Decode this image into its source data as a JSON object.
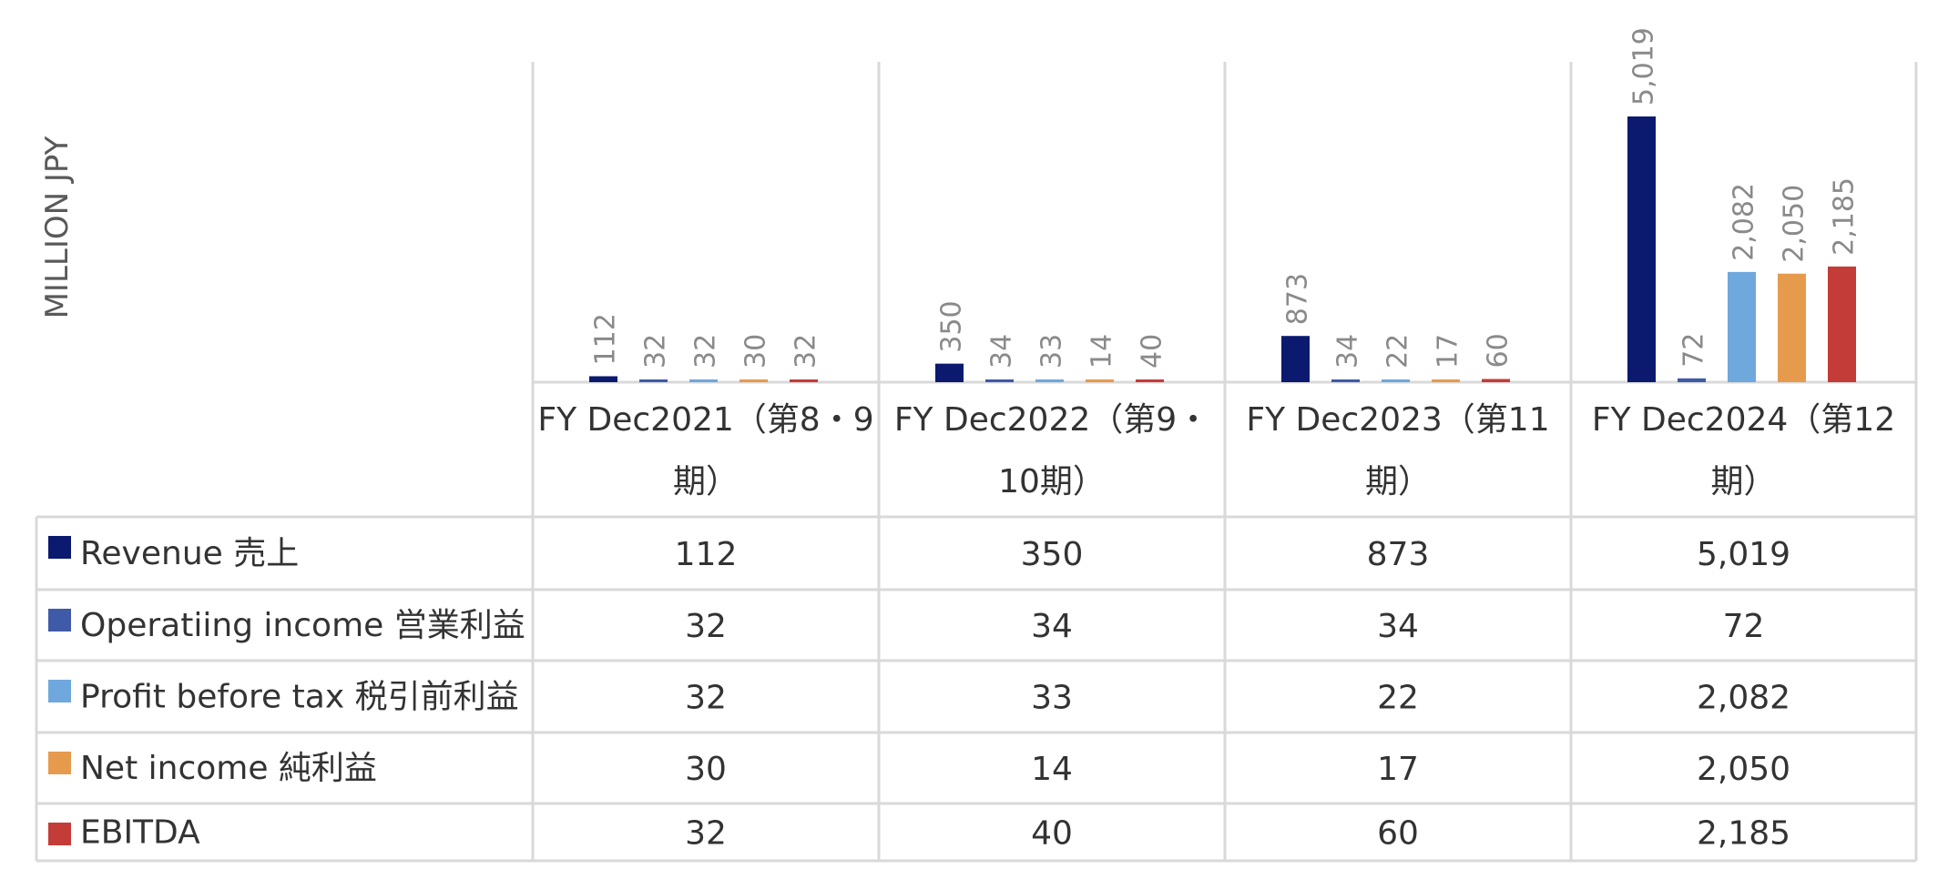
{
  "chart_data": {
    "type": "bar",
    "ylabel": "MILLION JPY",
    "categories": [
      [
        "FY Dec2021（第8・9",
        "期）"
      ],
      [
        "FY Dec2022（第9・",
        "10期）"
      ],
      [
        "FY Dec2023（第11",
        "期）"
      ],
      [
        "FY Dec2024（第12",
        "期）"
      ]
    ],
    "series": [
      {
        "name": "Revenue 売上",
        "color": "#0b1a6e",
        "values": [
          112,
          350,
          873,
          5019
        ],
        "labels": [
          "112",
          "350",
          "873",
          "5,019"
        ]
      },
      {
        "name": "Operatiing income 営業利益",
        "color": "#3f5aa6",
        "values": [
          32,
          34,
          34,
          72
        ],
        "labels": [
          "32",
          "34",
          "34",
          "72"
        ]
      },
      {
        "name": "Profit before tax 税引前利益",
        "color": "#6fa8dc",
        "values": [
          32,
          33,
          22,
          2082
        ],
        "labels": [
          "32",
          "33",
          "22",
          "2,082"
        ]
      },
      {
        "name": "Net income 純利益",
        "color": "#e69b4c",
        "values": [
          30,
          14,
          17,
          2050
        ],
        "labels": [
          "30",
          "14",
          "17",
          "2,050"
        ]
      },
      {
        "name": "EBITDA",
        "color": "#c43c37",
        "values": [
          32,
          40,
          60,
          2185
        ],
        "labels": [
          "32",
          "40",
          "60",
          "2,185"
        ]
      }
    ],
    "ylim": [
      0,
      5019
    ],
    "grid": false,
    "legend": "data-table"
  }
}
